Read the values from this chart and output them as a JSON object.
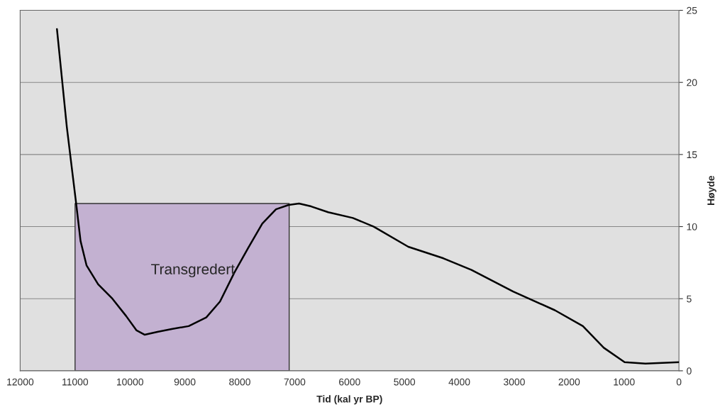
{
  "chart_data": {
    "type": "line",
    "xlabel": "Tid (kal yr BP)",
    "ylabel": "Høyde",
    "xlim": [
      12000,
      0
    ],
    "xticks": [
      12000,
      11000,
      10000,
      9000,
      8000,
      7000,
      6000,
      5000,
      4000,
      3000,
      2000,
      1000,
      0
    ],
    "ylim": [
      0,
      25
    ],
    "yticks": [
      0,
      5,
      10,
      15,
      20,
      25
    ],
    "grid": "y",
    "legend": false,
    "line_style": "solid",
    "series": [
      {
        "type": "area",
        "name": "Transgredert",
        "color": "#c3b1d1",
        "x": [
          11000,
          7100
        ],
        "values": [
          11.6,
          11.6
        ]
      },
      {
        "color": "#000000",
        "x": [
          11330,
          11150,
          10980,
          10900,
          10790,
          10580,
          10320,
          10070,
          9880,
          9730,
          9500,
          9240,
          8930,
          8610,
          8360,
          8100,
          7850,
          7590,
          7340,
          7110,
          6920,
          6700,
          6390,
          5940,
          5560,
          4930,
          4290,
          3780,
          3020,
          2260,
          1750,
          1370,
          990,
          610,
          0
        ],
        "values": [
          23.7,
          16.9,
          11.6,
          9.0,
          7.3,
          6.0,
          5.0,
          3.8,
          2.8,
          2.5,
          2.7,
          2.9,
          3.1,
          3.7,
          4.8,
          6.8,
          8.5,
          10.2,
          11.2,
          11.5,
          11.6,
          11.4,
          11.0,
          10.6,
          10.0,
          8.6,
          7.8,
          7.0,
          5.5,
          4.2,
          3.1,
          1.6,
          0.6,
          0.5,
          0.6
        ]
      }
    ]
  }
}
